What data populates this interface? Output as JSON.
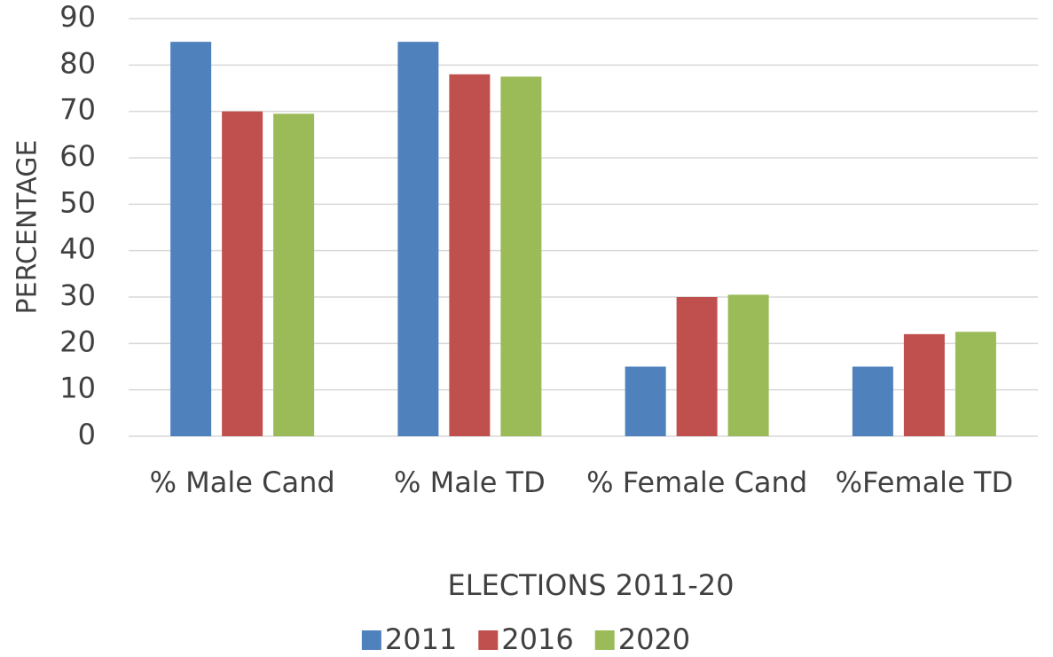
{
  "chart_data": {
    "type": "bar",
    "x_label": "ELECTIONS 2011-20",
    "y_label": "PERCENTAGE",
    "categories": [
      "% Male Cand",
      "% Male TD",
      "% Female Cand",
      "%Female TD"
    ],
    "series": [
      {
        "name": "2011",
        "color": "#4f81bd",
        "values": [
          85,
          85,
          15,
          15
        ]
      },
      {
        "name": "2016",
        "color": "#c0504d",
        "values": [
          70,
          78,
          30,
          22
        ]
      },
      {
        "name": "2020",
        "color": "#9bbb59",
        "values": [
          69.5,
          77.5,
          30.5,
          22.5
        ]
      }
    ],
    "ylim": [
      0,
      90
    ],
    "yticks": [
      0,
      10,
      20,
      30,
      40,
      50,
      60,
      70,
      80,
      90
    ],
    "grid": true,
    "legend": "bottom"
  }
}
